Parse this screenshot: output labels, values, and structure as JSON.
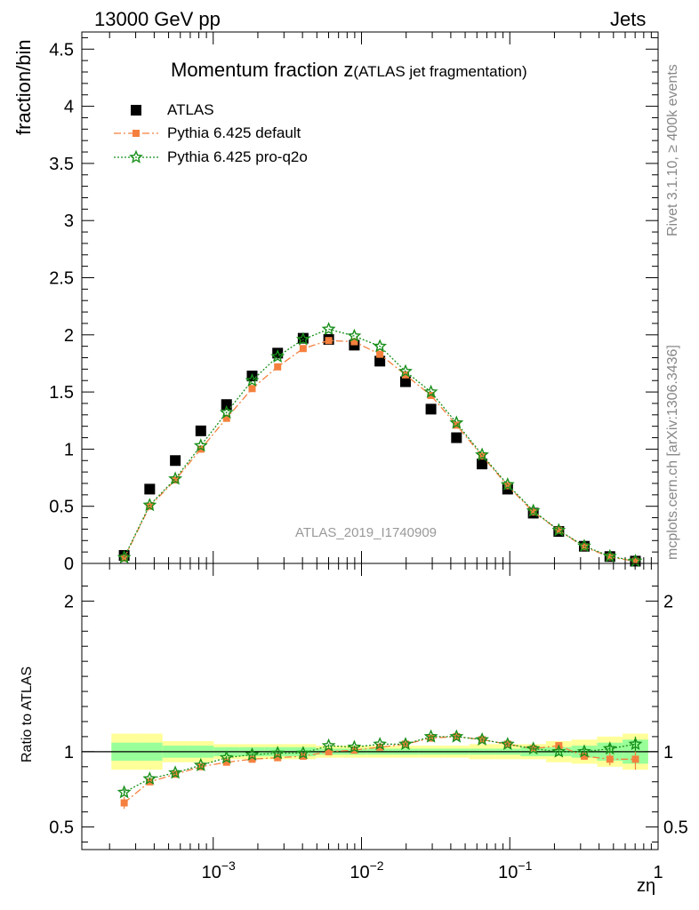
{
  "header": {
    "left": "13000 GeV pp",
    "right": "Jets"
  },
  "side_labels": {
    "rivet": "Rivet 3.1.10, ≥ 400k events",
    "mcplots": "mcplots.cern.ch [arXiv:1306.3436]"
  },
  "chart_data": {
    "type": "scatter",
    "title_main": "Momentum fraction z",
    "title_sub": "(ATLAS jet fragmentation)",
    "ylabel": "fraction/bin",
    "xlabel": "zη",
    "analysis": "ATLAS_2019_I1740909",
    "x_scale": "log",
    "xlim": [
      0.00013,
      1.0
    ],
    "ylim": [
      0,
      4.65
    ],
    "x_ticks": [
      {
        "value": 0.001,
        "label": "10",
        "exp": "−3"
      },
      {
        "value": 0.01,
        "label": "10",
        "exp": "−2"
      },
      {
        "value": 0.1,
        "label": "10",
        "exp": "−1"
      },
      {
        "value": 1,
        "label": "1",
        "exp": ""
      }
    ],
    "y_ticks": [
      "0",
      "0.5",
      "1",
      "1.5",
      "2",
      "2.5",
      "3",
      "3.5",
      "4",
      "4.5"
    ],
    "legend": {
      "position": "top-left",
      "entries": [
        "ATLAS",
        "Pythia 6.425 default",
        "Pythia 6.425 pro-q2o"
      ]
    },
    "x": [
      0.000251,
      0.000373,
      0.000555,
      0.000825,
      0.00123,
      0.00183,
      0.00272,
      0.00404,
      0.00601,
      0.00894,
      0.0133,
      0.0198,
      0.0294,
      0.0437,
      0.065,
      0.0967,
      0.144,
      0.214,
      0.318,
      0.473,
      0.703
    ],
    "series": [
      {
        "name": "ATLAS",
        "color": "#000000",
        "marker": "square",
        "values": [
          0.07,
          0.65,
          0.9,
          1.16,
          1.39,
          1.64,
          1.84,
          1.97,
          1.96,
          1.91,
          1.77,
          1.59,
          1.35,
          1.1,
          0.87,
          0.65,
          0.44,
          0.28,
          0.15,
          0.06,
          0.02
        ]
      },
      {
        "name": "Pythia 6.425 default",
        "color": "#f5803e",
        "marker": "circle",
        "values": [
          0.046,
          0.5,
          0.73,
          1.0,
          1.27,
          1.53,
          1.72,
          1.88,
          1.95,
          1.94,
          1.83,
          1.65,
          1.47,
          1.21,
          0.94,
          0.68,
          0.45,
          0.29,
          0.145,
          0.057,
          0.019
        ]
      },
      {
        "name": "Pythia 6.425 pro-q2o",
        "color": "#188f1a",
        "marker": "star",
        "values": [
          0.052,
          0.51,
          0.74,
          1.03,
          1.32,
          1.6,
          1.81,
          1.96,
          2.05,
          1.99,
          1.9,
          1.68,
          1.5,
          1.23,
          0.95,
          0.69,
          0.46,
          0.29,
          0.152,
          0.062,
          0.021
        ]
      }
    ],
    "ratio": {
      "ylabel": "Ratio to ATLAS",
      "ylim": [
        0.35,
        2.25
      ],
      "y_ticks": [
        "0.5",
        "1",
        "2"
      ],
      "band_yellow_halfwidth": [
        0.12,
        0.12,
        0.07,
        0.07,
        0.05,
        0.05,
        0.05,
        0.05,
        0.04,
        0.04,
        0.04,
        0.04,
        0.04,
        0.04,
        0.05,
        0.05,
        0.05,
        0.07,
        0.08,
        0.1,
        0.12
      ],
      "band_green_halfwidth": [
        0.06,
        0.06,
        0.04,
        0.04,
        0.03,
        0.03,
        0.03,
        0.03,
        0.02,
        0.02,
        0.02,
        0.02,
        0.02,
        0.02,
        0.02,
        0.02,
        0.03,
        0.03,
        0.04,
        0.06,
        0.08
      ],
      "series": [
        {
          "name": "Pythia 6.425 default",
          "color": "#f5803e",
          "marker": "circle",
          "values": [
            0.66,
            0.8,
            0.85,
            0.9,
            0.93,
            0.95,
            0.96,
            0.97,
            1.0,
            1.01,
            1.03,
            1.05,
            1.09,
            1.1,
            1.08,
            1.05,
            1.02,
            1.04,
            0.97,
            0.95,
            0.95
          ],
          "errors": [
            0.04,
            0.015,
            0.01,
            0.01,
            0.01,
            0.01,
            0.01,
            0.01,
            0.01,
            0.01,
            0.01,
            0.01,
            0.01,
            0.01,
            0.01,
            0.01,
            0.01,
            0.02,
            0.02,
            0.04,
            0.07
          ]
        },
        {
          "name": "Pythia 6.425 pro-q2o",
          "color": "#188f1a",
          "marker": "star",
          "values": [
            0.73,
            0.82,
            0.86,
            0.91,
            0.96,
            0.98,
            0.99,
            0.99,
            1.04,
            1.03,
            1.05,
            1.05,
            1.1,
            1.1,
            1.08,
            1.05,
            1.02,
            1.0,
            1.0,
            1.02,
            1.05
          ],
          "errors": [
            0.02,
            0.01,
            0.01,
            0.01,
            0.01,
            0.01,
            0.01,
            0.01,
            0.01,
            0.01,
            0.01,
            0.01,
            0.01,
            0.01,
            0.01,
            0.01,
            0.01,
            0.02,
            0.02,
            0.03,
            0.05
          ]
        }
      ]
    }
  }
}
